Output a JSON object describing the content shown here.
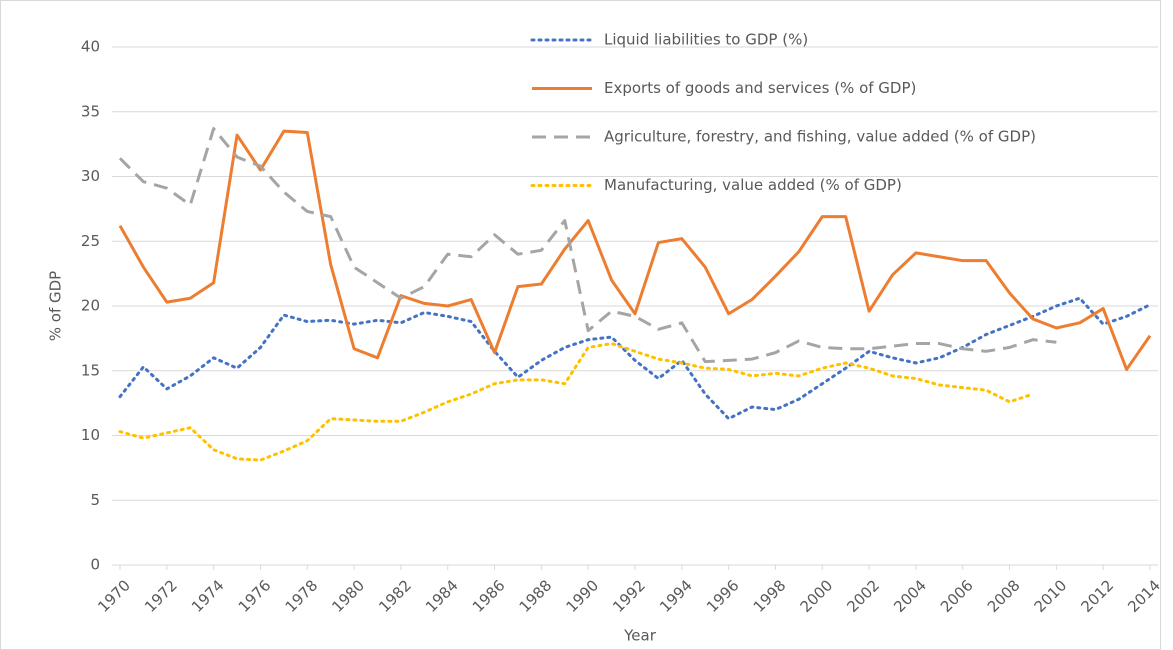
{
  "chart_data": {
    "type": "line",
    "x_label": "Year",
    "y_label": "% of GDP",
    "x": [
      1970,
      1971,
      1972,
      1973,
      1974,
      1975,
      1976,
      1977,
      1978,
      1979,
      1980,
      1981,
      1982,
      1983,
      1984,
      1985,
      1986,
      1987,
      1988,
      1989,
      1990,
      1991,
      1992,
      1993,
      1994,
      1995,
      1996,
      1997,
      1998,
      1999,
      2000,
      2001,
      2002,
      2003,
      2004,
      2005,
      2006,
      2007,
      2008,
      2009,
      2010,
      2011,
      2012,
      2013,
      2014
    ],
    "xlim": [
      1970,
      2014
    ],
    "xticks": [
      1970,
      1972,
      1974,
      1976,
      1978,
      1980,
      1982,
      1984,
      1986,
      1988,
      1990,
      1992,
      1994,
      1996,
      1998,
      2000,
      2002,
      2004,
      2006,
      2008,
      2010,
      2012,
      2014
    ],
    "ylim": [
      0,
      40
    ],
    "yticks": [
      0,
      5,
      10,
      15,
      20,
      25,
      30,
      35,
      40
    ],
    "grid": true,
    "series": [
      {
        "name": "Liquid liabilities to GDP (%)",
        "color": "#4472c4",
        "style": "dotted",
        "values": [
          13,
          15.3,
          13.6,
          14.6,
          16,
          15.2,
          16.8,
          19.3,
          18.8,
          18.9,
          18.6,
          18.9,
          18.7,
          19.5,
          19.2,
          18.8,
          16.5,
          14.5,
          15.8,
          16.8,
          17.4,
          17.6,
          15.8,
          14.4,
          15.8,
          13.2,
          11.3,
          12.2,
          12,
          12.8,
          14,
          15.2,
          16.5,
          16,
          15.6,
          16,
          16.8,
          17.8,
          18.5,
          19.2,
          20,
          20.6,
          18.6,
          19.2,
          20.1
        ]
      },
      {
        "name": "Exports of goods and services (% of GDP)",
        "color": "#ed7d31",
        "style": "solid",
        "values": [
          26.2,
          23,
          20.3,
          20.6,
          21.8,
          33.2,
          30.5,
          33.5,
          33.4,
          23.2,
          16.7,
          16,
          20.8,
          20.2,
          20,
          20.5,
          16.4,
          21.5,
          21.7,
          24.4,
          26.6,
          22,
          19.4,
          24.9,
          25.2,
          23,
          19.4,
          20.5,
          22.3,
          24.2,
          26.9,
          26.9,
          19.6,
          22.4,
          24.1,
          23.8,
          23.5,
          23.5,
          21,
          19,
          18.3,
          18.7,
          19.8,
          15.1,
          17.7
        ]
      },
      {
        "name": "Agriculture, forestry, and fishing, value added (% of GDP)",
        "color": "#a5a5a5",
        "style": "dashed",
        "values": [
          31.4,
          29.6,
          29.1,
          27.8,
          33.7,
          31.5,
          30.8,
          28.8,
          27.3,
          26.9,
          23,
          21.8,
          20.6,
          21.5,
          24,
          23.8,
          25.5,
          24,
          24.3,
          26.6,
          18.1,
          19.6,
          19.2,
          18.2,
          18.7,
          15.7,
          15.8,
          15.9,
          16.4,
          17.3,
          16.8,
          16.7,
          16.7,
          16.9,
          17.1,
          17.1,
          16.7,
          16.5,
          16.8,
          17.4,
          17.2,
          null,
          null,
          null,
          null
        ]
      },
      {
        "name": "Manufacturing, value added (% of GDP)",
        "color": "#ffc000",
        "style": "dotted",
        "values": [
          10.3,
          9.8,
          10.2,
          10.6,
          8.9,
          8.2,
          8.1,
          8.8,
          9.6,
          11.3,
          11.2,
          11.1,
          11.1,
          11.8,
          12.6,
          13.2,
          14,
          14.3,
          14.3,
          14,
          16.8,
          17.1,
          16.5,
          15.9,
          15.6,
          15.2,
          15.1,
          14.6,
          14.8,
          14.6,
          15.2,
          15.6,
          15.2,
          14.6,
          14.4,
          13.9,
          13.7,
          13.5,
          12.6,
          13.2,
          null,
          null,
          null,
          null,
          null
        ]
      }
    ]
  }
}
